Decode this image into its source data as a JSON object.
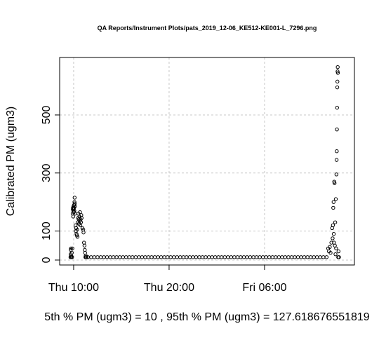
{
  "chart_data": {
    "type": "scatter",
    "title": "QA Reports/Instrument Plots/pats_2019_12-06_KE512-KE001-L_7296.png",
    "y_label": "Calibrated PM (ugm3)",
    "subtitle": "5th % PM (ugm3) =  10 , 95th % PM (ugm3)  =  127.618676551819",
    "color": "#000000",
    "grid": true,
    "xlim": [
      "Thu 08:32",
      "Fri 15:25"
    ],
    "xticks": [
      "Thu 10:00",
      "Thu 20:00",
      "Fri 06:00"
    ],
    "ylim": [
      -17,
      698
    ],
    "yticks": [
      0,
      100,
      300,
      500
    ],
    "x": [
      "Thu 09:40",
      "Thu 09:41",
      "Thu 09:42",
      "Thu 09:43",
      "Thu 09:44",
      "Thu 09:45",
      "Thu 09:48",
      "Thu 09:50",
      "Thu 09:52",
      "Thu 09:54",
      "Thu 09:55",
      "Thu 09:56",
      "Thu 09:57",
      "Thu 09:58",
      "Thu 09:59",
      "Thu 10:00",
      "Thu 10:01",
      "Thu 10:02",
      "Thu 10:03",
      "Thu 10:04",
      "Thu 10:05",
      "Thu 10:06",
      "Thu 10:07",
      "Thu 10:08",
      "Thu 10:10",
      "Thu 10:12",
      "Thu 10:14",
      "Thu 10:16",
      "Thu 10:18",
      "Thu 10:20",
      "Thu 10:22",
      "Thu 10:24",
      "Thu 10:26",
      "Thu 10:28",
      "Thu 10:30",
      "Thu 10:32",
      "Thu 10:34",
      "Thu 10:36",
      "Thu 10:38",
      "Thu 10:40",
      "Thu 10:42",
      "Thu 10:44",
      "Thu 10:46",
      "Thu 10:48",
      "Thu 10:50",
      "Thu 10:55",
      "Thu 11:00",
      "Thu 11:02",
      "Thu 11:05",
      "Thu 11:08",
      "Thu 11:10",
      "Thu 11:12",
      "Thu 11:14",
      "Thu 11:16",
      "Thu 11:18",
      "Thu 11:20",
      "Thu 11:30",
      "Thu 11:50",
      "Thu 12:10",
      "Thu 12:30",
      "Thu 12:50",
      "Thu 13:10",
      "Thu 13:30",
      "Thu 13:50",
      "Thu 14:10",
      "Thu 14:30",
      "Thu 14:50",
      "Thu 15:10",
      "Thu 15:30",
      "Thu 15:50",
      "Thu 16:10",
      "Thu 16:30",
      "Thu 16:50",
      "Thu 17:10",
      "Thu 17:30",
      "Thu 17:50",
      "Thu 18:10",
      "Thu 18:30",
      "Thu 18:50",
      "Thu 19:10",
      "Thu 19:30",
      "Thu 19:50",
      "Thu 20:10",
      "Thu 20:30",
      "Thu 20:50",
      "Thu 21:10",
      "Thu 21:30",
      "Thu 21:50",
      "Thu 22:10",
      "Thu 22:30",
      "Thu 22:50",
      "Thu 23:10",
      "Thu 23:30",
      "Thu 23:50",
      "Fri 00:10",
      "Fri 00:30",
      "Fri 00:50",
      "Fri 01:10",
      "Fri 01:30",
      "Fri 01:50",
      "Fri 02:10",
      "Fri 02:30",
      "Fri 02:50",
      "Fri 03:10",
      "Fri 03:30",
      "Fri 03:50",
      "Fri 04:10",
      "Fri 04:30",
      "Fri 04:50",
      "Fri 05:10",
      "Fri 05:30",
      "Fri 05:50",
      "Fri 06:10",
      "Fri 06:30",
      "Fri 06:50",
      "Fri 07:10",
      "Fri 07:30",
      "Fri 07:50",
      "Fri 08:10",
      "Fri 08:30",
      "Fri 08:50",
      "Fri 09:10",
      "Fri 09:30",
      "Fri 09:50",
      "Fri 10:10",
      "Fri 10:30",
      "Fri 10:50",
      "Fri 11:10",
      "Fri 11:30",
      "Fri 11:50",
      "Fri 12:10",
      "Fri 12:30",
      "Fri 12:40",
      "Fri 12:45",
      "Fri 12:50",
      "Fri 12:55",
      "Fri 13:00",
      "Fri 13:05",
      "Fri 13:08",
      "Fri 13:10",
      "Fri 13:12",
      "Fri 13:14",
      "Fri 13:15",
      "Fri 13:17",
      "Fri 13:18",
      "Fri 13:20",
      "Fri 13:22",
      "Fri 13:24",
      "Fri 13:26",
      "Fri 13:28",
      "Fri 13:30",
      "Fri 13:32",
      "Fri 13:33",
      "Fri 13:34",
      "Fri 13:35",
      "Fri 13:36",
      "Fri 13:37",
      "Fri 13:38",
      "Fri 13:39",
      "Fri 13:40",
      "Fri 13:41",
      "Fri 13:43",
      "Fri 13:45",
      "Fri 13:48"
    ],
    "values": [
      10,
      20,
      35,
      40,
      15,
      10,
      25,
      10,
      40,
      160,
      175,
      180,
      150,
      170,
      185,
      175,
      165,
      180,
      190,
      170,
      200,
      215,
      195,
      185,
      160,
      120,
      100,
      110,
      90,
      85,
      105,
      80,
      130,
      145,
      160,
      140,
      125,
      150,
      135,
      165,
      120,
      140,
      130,
      155,
      145,
      110,
      105,
      95,
      60,
      50,
      35,
      25,
      10,
      15,
      10,
      10,
      10,
      10,
      10,
      10,
      10,
      10,
      10,
      10,
      10,
      10,
      10,
      10,
      10,
      10,
      10,
      10,
      10,
      10,
      10,
      10,
      10,
      10,
      10,
      10,
      10,
      10,
      10,
      10,
      10,
      10,
      10,
      10,
      10,
      10,
      10,
      10,
      10,
      10,
      10,
      10,
      10,
      10,
      10,
      10,
      10,
      10,
      10,
      10,
      10,
      10,
      10,
      10,
      10,
      10,
      10,
      10,
      10,
      10,
      10,
      10,
      10,
      10,
      10,
      10,
      10,
      10,
      10,
      10,
      10,
      10,
      10,
      10,
      10,
      10,
      10,
      10,
      40,
      30,
      45,
      25,
      60,
      110,
      75,
      120,
      180,
      200,
      90,
      60,
      270,
      265,
      50,
      130,
      20,
      210,
      40,
      295,
      345,
      375,
      450,
      525,
      595,
      615,
      650,
      665,
      645,
      10,
      30,
      10
    ]
  }
}
